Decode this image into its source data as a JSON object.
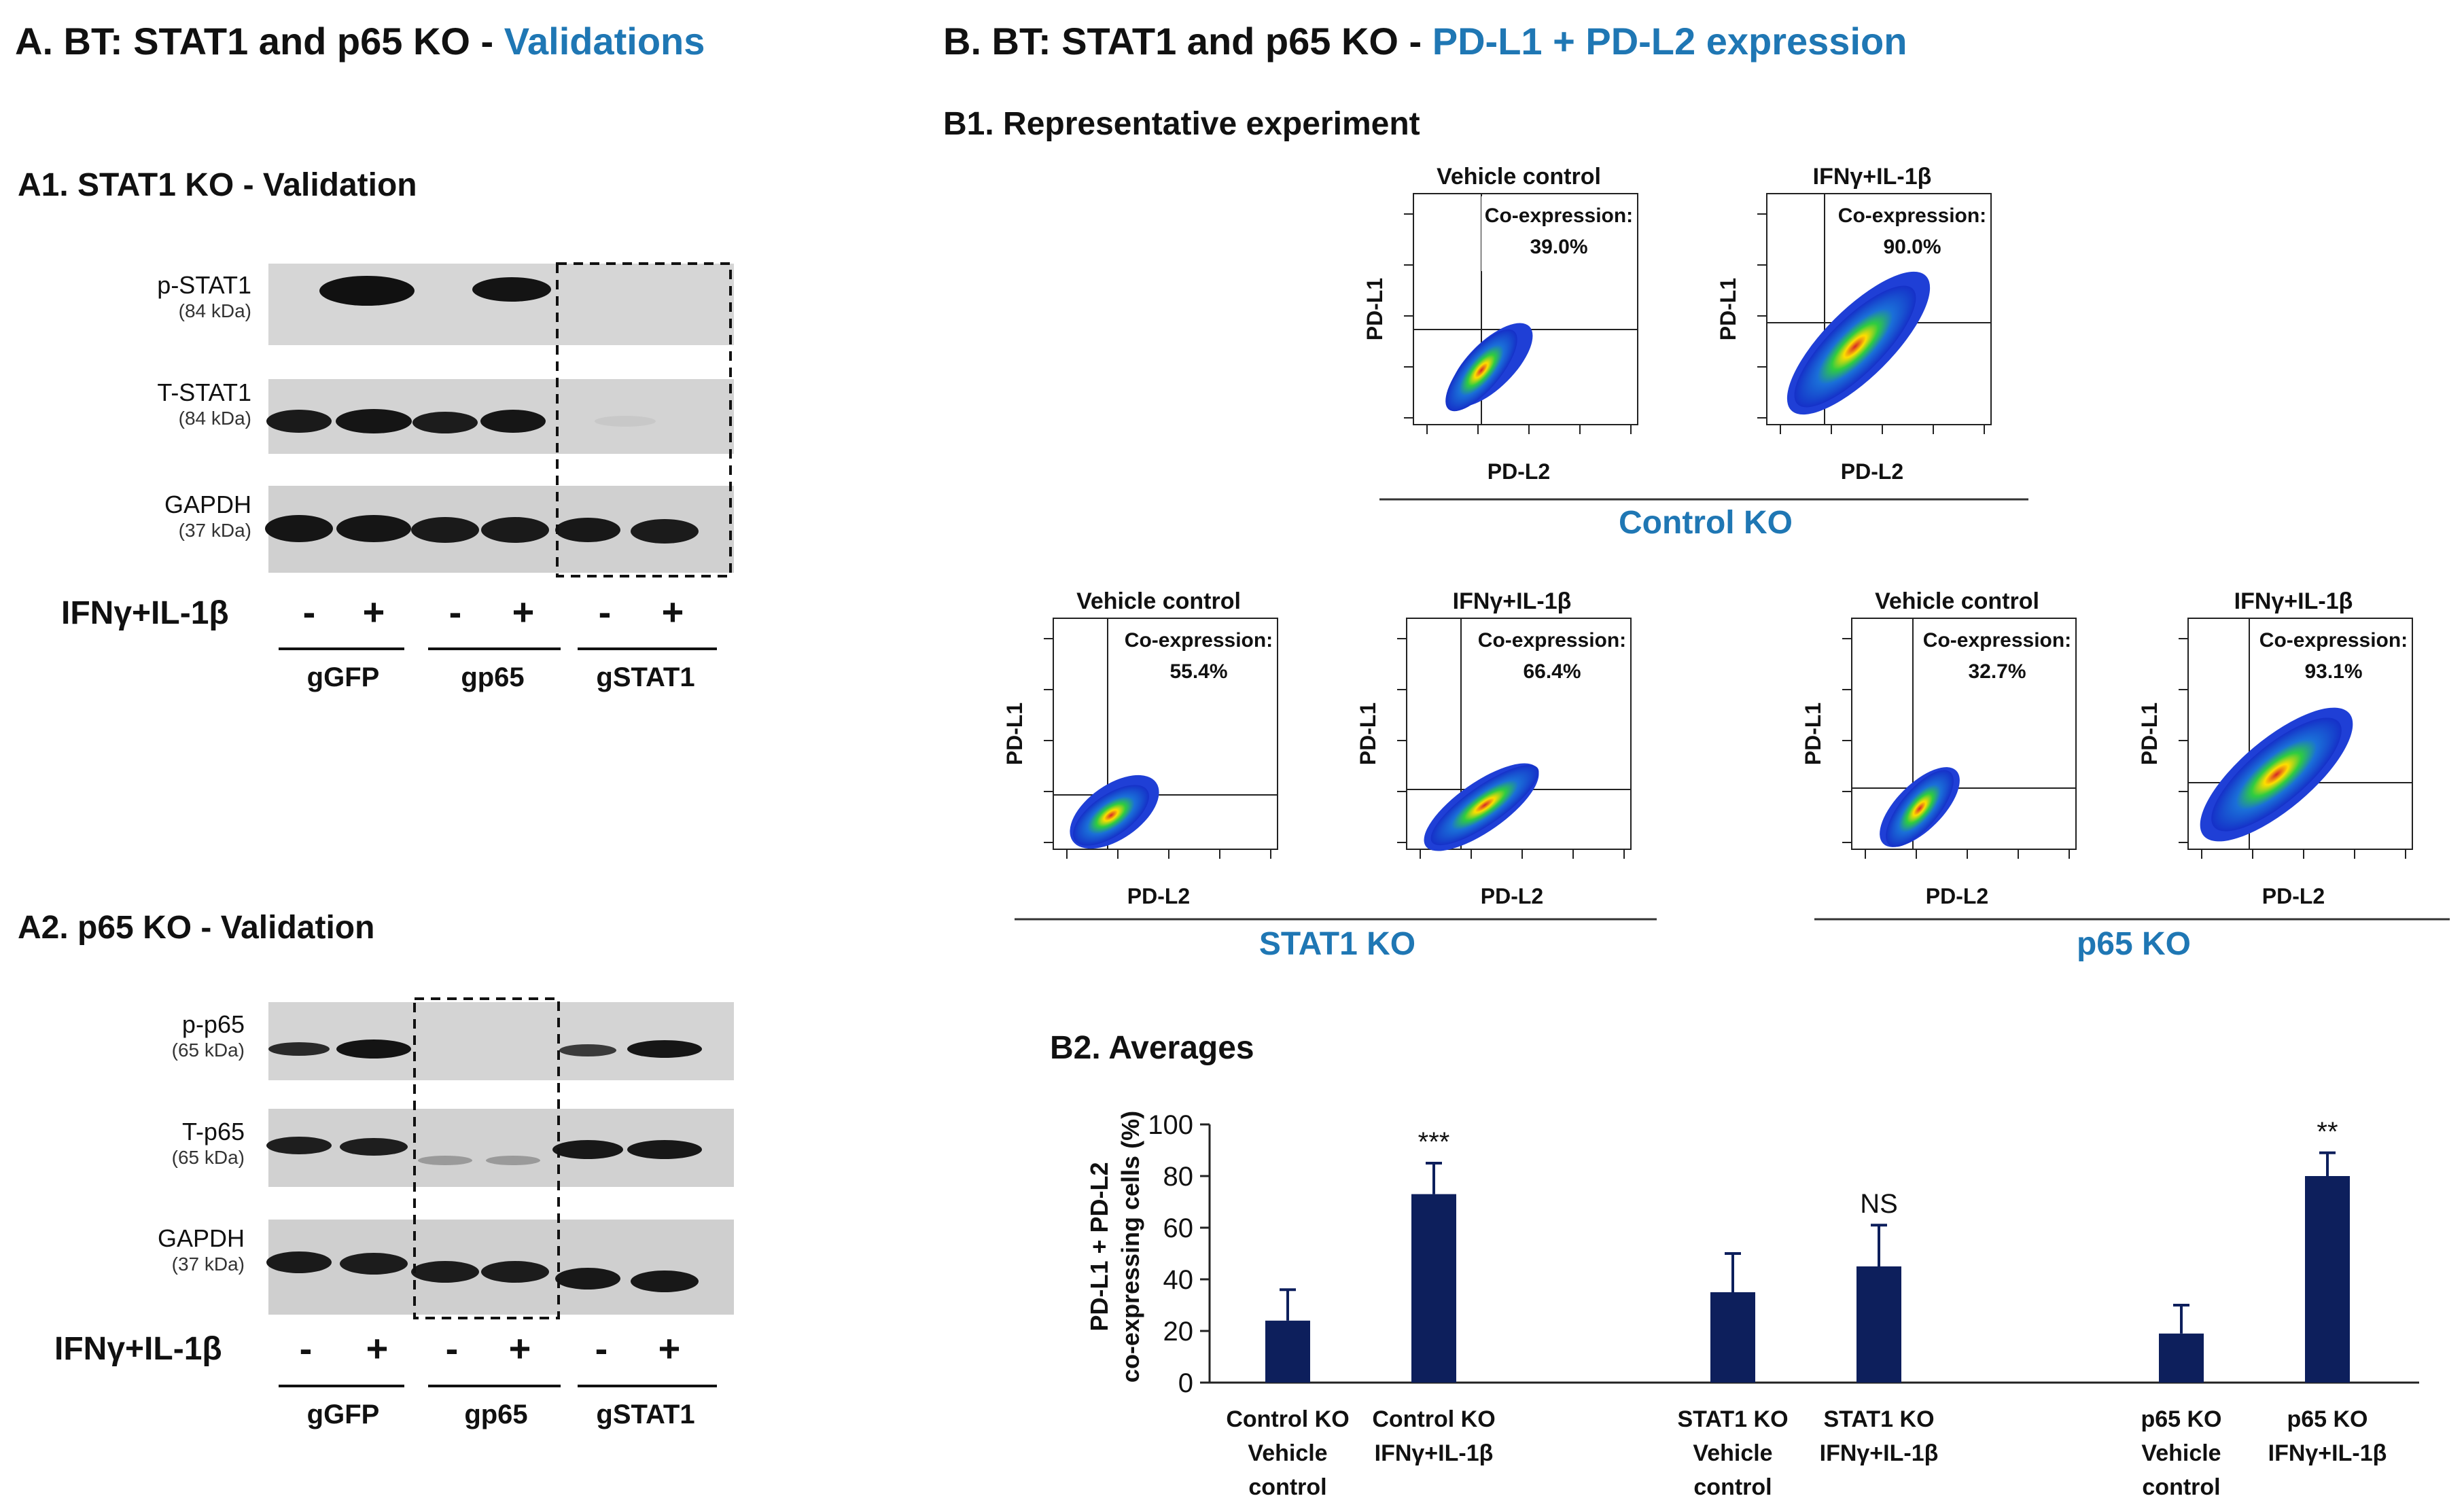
{
  "panelA": {
    "title_prefix": "A. BT: STAT1 and p65 KO - ",
    "title_highlight": "Validations",
    "a1": {
      "title": "A1. STAT1 KO - Validation",
      "rows": [
        {
          "label": "p-STAT1",
          "kda": "(84 kDa)"
        },
        {
          "label": "T-STAT1",
          "kda": "(84 kDa)"
        },
        {
          "label": "GAPDH",
          "kda": "(37 kDa)"
        }
      ],
      "treatment_label": "IFNγ+IL-1β",
      "signs": [
        "-",
        "+",
        "-",
        "+",
        "-",
        "+"
      ],
      "groups": [
        "gGFP",
        "gp65",
        "gSTAT1"
      ]
    },
    "a2": {
      "title": "A2. p65 KO - Validation",
      "rows": [
        {
          "label": "p-p65",
          "kda": "(65 kDa)"
        },
        {
          "label": "T-p65",
          "kda": "(65 kDa)"
        },
        {
          "label": "GAPDH",
          "kda": "(37 kDa)"
        }
      ],
      "treatment_label": "IFNγ+IL-1β",
      "signs": [
        "-",
        "+",
        "-",
        "+",
        "-",
        "+"
      ],
      "groups": [
        "gGFP",
        "gp65",
        "gSTAT1"
      ]
    }
  },
  "panelB": {
    "title_prefix": "B. BT: STAT1 and p65 KO - ",
    "title_highlight": "PD-L1 + PD-L2 expression",
    "b1_title": "B1. Representative experiment",
    "b2_title": "B2. Averages",
    "coexp_label": "Co-expression:",
    "y_axis": "PD-L1",
    "x_axis": "PD-L2",
    "groups": [
      {
        "name": "Control KO",
        "plots": [
          {
            "condition": "Vehicle control",
            "value": "39.0%"
          },
          {
            "condition": "IFNγ+IL-1β",
            "value": "90.0%"
          }
        ]
      },
      {
        "name": "STAT1 KO",
        "plots": [
          {
            "condition": "Vehicle control",
            "value": "55.4%"
          },
          {
            "condition": "IFNγ+IL-1β",
            "value": "66.4%"
          }
        ]
      },
      {
        "name": "p65 KO",
        "plots": [
          {
            "condition": "Vehicle control",
            "value": "32.7%"
          },
          {
            "condition": "IFNγ+IL-1β",
            "value": "93.1%"
          }
        ]
      }
    ]
  },
  "colors": {
    "accent": "#1f77b4",
    "bar": "#0d1f5c"
  },
  "chart_data": {
    "type": "bar",
    "ylabel": "PD-L1 + PD-L2 co-expressing cells (%)",
    "ylim": [
      0,
      100
    ],
    "yticks": [
      0,
      20,
      40,
      60,
      80,
      100
    ],
    "categories": [
      [
        "Control KO",
        "Vehicle",
        "control"
      ],
      [
        "Control KO",
        "IFNγ+IL-1β"
      ],
      [
        "STAT1 KO",
        "Vehicle",
        "control"
      ],
      [
        "STAT1 KO",
        "IFNγ+IL-1β"
      ],
      [
        "p65 KO",
        "Vehicle",
        "control"
      ],
      [
        "p65 KO",
        "IFNγ+IL-1β"
      ]
    ],
    "values": [
      24,
      73,
      35,
      45,
      19,
      80
    ],
    "errors": [
      12,
      12,
      15,
      16,
      11,
      9
    ],
    "annotations": [
      "",
      "***",
      "",
      "NS",
      "",
      "**"
    ]
  }
}
